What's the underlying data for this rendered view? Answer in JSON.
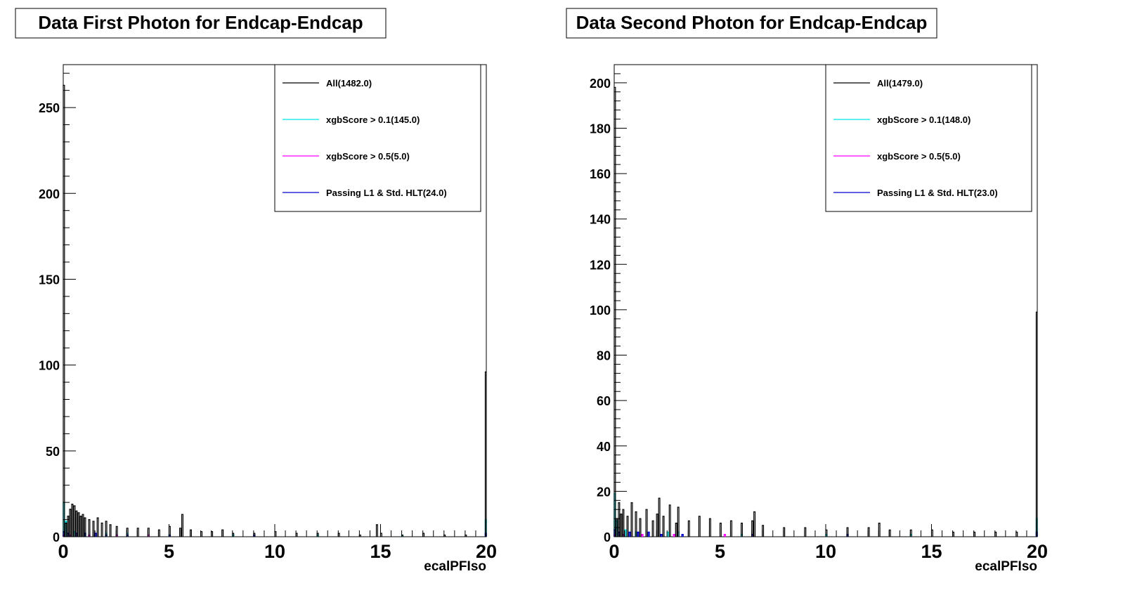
{
  "chart_data": [
    {
      "type": "histogram",
      "title": "Data First Photon for Endcap-Endcap",
      "xlabel": "ecalPFIso",
      "ylabel": "",
      "xlim": [
        0,
        20
      ],
      "ylim": [
        0,
        275
      ],
      "xticks": [
        0,
        5,
        10,
        15,
        20
      ],
      "xtick_labels": [
        "0",
        "5",
        "10",
        "15",
        "20"
      ],
      "yticks": [
        0,
        50,
        100,
        150,
        200,
        250
      ],
      "ytick_labels": [
        "0",
        "50",
        "100",
        "150",
        "200",
        "250"
      ],
      "legend_position": "top-right",
      "series": [
        {
          "name": "All(1482.0)",
          "color": "#000000",
          "x": [
            0.0,
            0.1,
            0.2,
            0.3,
            0.4,
            0.5,
            0.6,
            0.7,
            0.8,
            0.9,
            1.0,
            1.2,
            1.4,
            1.6,
            1.8,
            2.0,
            2.2,
            2.5,
            3.0,
            3.5,
            4.0,
            4.5,
            5.0,
            5.5,
            5.6,
            6.0,
            6.5,
            7.0,
            7.5,
            8.0,
            9.0,
            10.0,
            11.0,
            12.0,
            13.0,
            14.0,
            14.8,
            15.0,
            16.0,
            17.0,
            18.0,
            19.0,
            19.95
          ],
          "values": [
            263,
            8,
            12,
            16,
            19,
            18,
            15,
            14,
            12,
            13,
            11,
            10,
            9,
            11,
            8,
            9,
            7,
            6,
            5,
            5,
            5,
            4,
            6,
            5,
            13,
            4,
            3,
            3,
            4,
            2,
            2,
            3,
            2,
            2,
            2,
            1,
            7,
            2,
            1,
            2,
            1,
            1,
            96
          ]
        },
        {
          "name": "xgbScore > 0.1(145.0)",
          "color": "#00e5e5",
          "x": [
            0.0,
            0.1,
            0.5,
            1.0,
            2.0,
            3.0,
            5.0,
            8.0,
            12.0,
            16.0,
            19.95
          ],
          "values": [
            20,
            9,
            3,
            2,
            2,
            2,
            1,
            1,
            1,
            1,
            10
          ]
        },
        {
          "name": "xgbScore > 0.5(5.0)",
          "color": "#ff00ff",
          "x": [
            0.0,
            0.3,
            1.2,
            2.5,
            4.0
          ],
          "values": [
            1,
            1,
            1,
            1,
            1
          ]
        },
        {
          "name": "Passing L1 & Std. HLT(24.0)",
          "color": "#0000cc",
          "x": [
            0.0,
            0.2,
            0.6,
            1.0,
            1.5,
            2.0,
            3.0,
            5.0,
            9.0,
            19.95
          ],
          "values": [
            3,
            2,
            2,
            2,
            2,
            1,
            1,
            1,
            1,
            2
          ]
        }
      ]
    },
    {
      "type": "histogram",
      "title": "Data Second Photon for Endcap-Endcap",
      "xlabel": "ecalPFIso",
      "ylabel": "",
      "xlim": [
        0,
        20
      ],
      "ylim": [
        0,
        208
      ],
      "xticks": [
        0,
        5,
        10,
        15,
        20
      ],
      "xtick_labels": [
        "0",
        "5",
        "10",
        "15",
        "20"
      ],
      "yticks": [
        0,
        20,
        40,
        60,
        80,
        100,
        120,
        140,
        160,
        180,
        200
      ],
      "ytick_labels": [
        "0",
        "20",
        "40",
        "60",
        "80",
        "100",
        "120",
        "140",
        "160",
        "180",
        "200"
      ],
      "legend_position": "top-right",
      "series": [
        {
          "name": "All(1479.0)",
          "color": "#000000",
          "x": [
            0.0,
            0.1,
            0.2,
            0.3,
            0.4,
            0.6,
            0.8,
            1.0,
            1.2,
            1.5,
            1.8,
            2.0,
            2.1,
            2.3,
            2.6,
            2.9,
            3.0,
            3.5,
            4.0,
            4.5,
            5.0,
            5.5,
            6.0,
            6.5,
            6.6,
            7.0,
            8.0,
            9.0,
            10.0,
            11.0,
            12.0,
            12.5,
            13.0,
            14.0,
            15.0,
            16.0,
            17.0,
            18.0,
            19.0,
            19.95
          ],
          "values": [
            198,
            8,
            15,
            10,
            12,
            9,
            15,
            11,
            8,
            12,
            7,
            10,
            17,
            9,
            14,
            6,
            13,
            7,
            9,
            8,
            6,
            7,
            6,
            7,
            11,
            5,
            4,
            4,
            3,
            4,
            4,
            6,
            3,
            3,
            3,
            2,
            2,
            2,
            2,
            99
          ]
        },
        {
          "name": "xgbScore > 0.1(148.0)",
          "color": "#00e5e5",
          "x": [
            0.0,
            0.1,
            0.5,
            1.0,
            2.5,
            3.0,
            6.0,
            10.0,
            14.0,
            19.95
          ],
          "values": [
            19,
            7,
            3,
            2,
            2,
            2,
            1,
            1,
            1,
            8
          ]
        },
        {
          "name": "xgbScore > 0.5(5.0)",
          "color": "#ff00ff",
          "x": [
            0.0,
            0.4,
            1.3,
            2.8,
            5.2
          ],
          "values": [
            1,
            1,
            1,
            1,
            1
          ]
        },
        {
          "name": "Passing L1 & Std. HLT(23.0)",
          "color": "#0000cc",
          "x": [
            0.0,
            0.2,
            0.7,
            1.1,
            1.6,
            2.2,
            3.2,
            6.5,
            11.0,
            19.95
          ],
          "values": [
            3,
            2,
            2,
            2,
            2,
            1,
            1,
            1,
            1,
            2
          ]
        }
      ]
    }
  ]
}
